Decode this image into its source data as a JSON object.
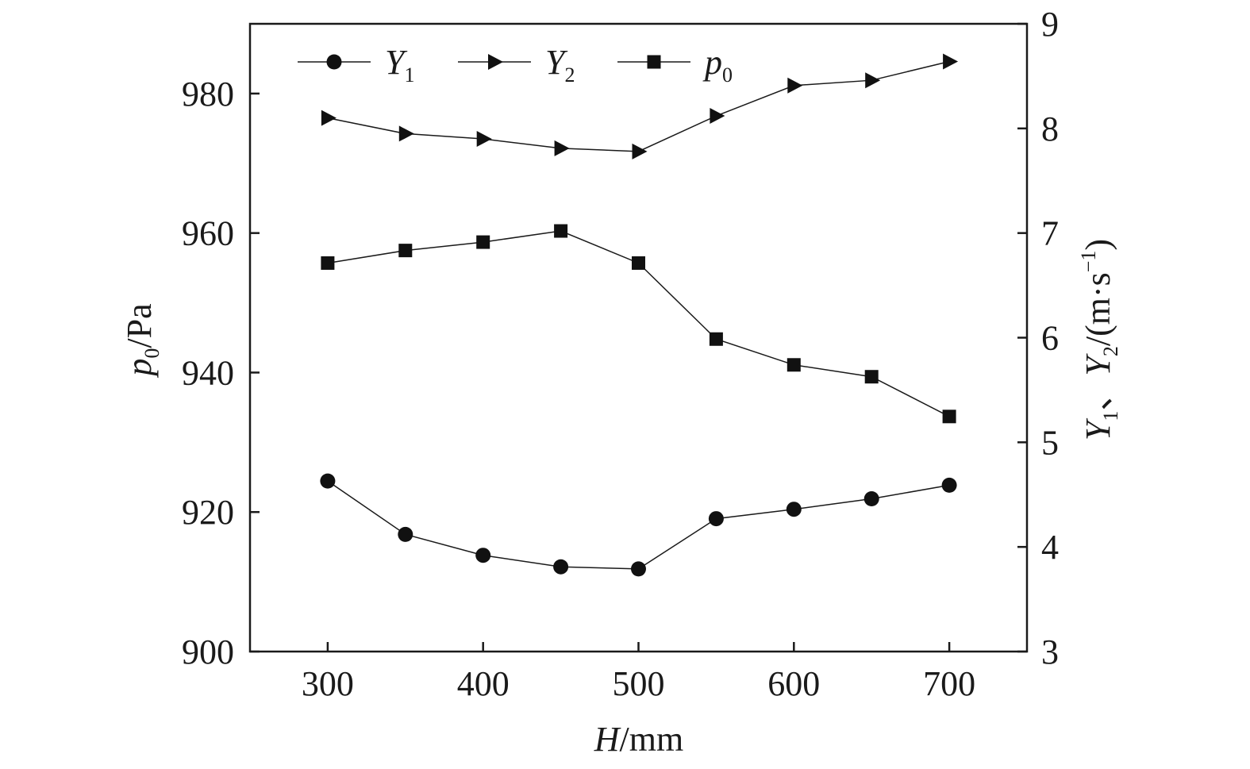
{
  "chart_data": {
    "type": "line",
    "xlabel": {
      "var": "H",
      "unit": "/mm"
    },
    "ylabel_left": {
      "var": "p",
      "sub": "0",
      "unit": "/Pa"
    },
    "ylabel_right": {
      "var1": "Y",
      "sub1": "1",
      "sep": "、",
      "var2": "Y",
      "sub2": "2",
      "unit_open": "/(m·s",
      "sup": "−1",
      "unit_close": ")"
    },
    "xlim": [
      250,
      750
    ],
    "ylim_left": [
      900,
      990
    ],
    "ylim_right": [
      3,
      9
    ],
    "x_ticks": [
      300,
      400,
      500,
      600,
      700
    ],
    "y_left_ticks": [
      900,
      920,
      940,
      960,
      980
    ],
    "y_right_ticks": [
      3,
      4,
      5,
      6,
      7,
      8,
      9
    ],
    "x": [
      300,
      350,
      400,
      450,
      500,
      550,
      600,
      650,
      700
    ],
    "series": [
      {
        "name": "Y",
        "sub": "1",
        "axis": "right",
        "marker": "circle",
        "values": [
          4.63,
          4.12,
          3.92,
          3.81,
          3.79,
          4.27,
          4.36,
          4.46,
          4.59
        ]
      },
      {
        "name": "Y",
        "sub": "2",
        "axis": "right",
        "marker": "triangle-right",
        "values": [
          8.1,
          7.95,
          7.9,
          7.81,
          7.78,
          8.12,
          8.41,
          8.46,
          8.64
        ]
      },
      {
        "name": "p",
        "sub": "0",
        "axis": "left",
        "marker": "square",
        "values": [
          955.7,
          957.5,
          958.7,
          960.3,
          955.7,
          944.8,
          941.1,
          939.4,
          933.7
        ]
      }
    ],
    "legend_position": "top-left",
    "grid": false,
    "colors": {
      "line": "#1a1a1a",
      "marker": "#111111",
      "axis": "#1a1a1a"
    }
  }
}
